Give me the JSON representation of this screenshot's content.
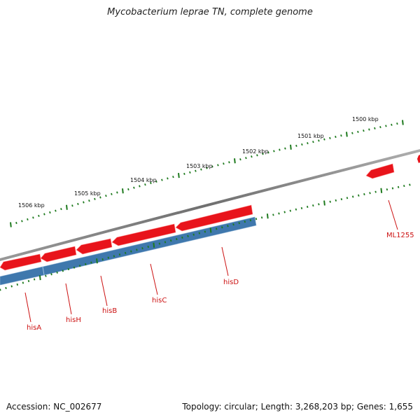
{
  "title": "Mycobacterium leprae TN, complete genome",
  "footer": {
    "accession": "Accession: NC_002677",
    "summary": "Topology: circular; Length: 3,268,203 bp; Genes: 1,655"
  },
  "ruler_labels": [
    "1506 kbp",
    "1505 kbp",
    "1504 kbp",
    "1503 kbp",
    "1502 kbp",
    "1501 kbp",
    "1500 kbp"
  ],
  "genes": [
    {
      "name": "hisA",
      "strand": "reverse"
    },
    {
      "name": "hisH",
      "strand": "reverse"
    },
    {
      "name": "hisB",
      "strand": "reverse"
    },
    {
      "name": "hisC",
      "strand": "reverse"
    },
    {
      "name": "hisD",
      "strand": "reverse"
    },
    {
      "name": "ML1255",
      "strand": "reverse"
    }
  ],
  "colors": {
    "cds": "#e8141b",
    "gene_block": "#3f78ad",
    "backbone": "#7a7a7a",
    "ticks": "#1e7a1e",
    "gene_label": "#cc1111"
  }
}
